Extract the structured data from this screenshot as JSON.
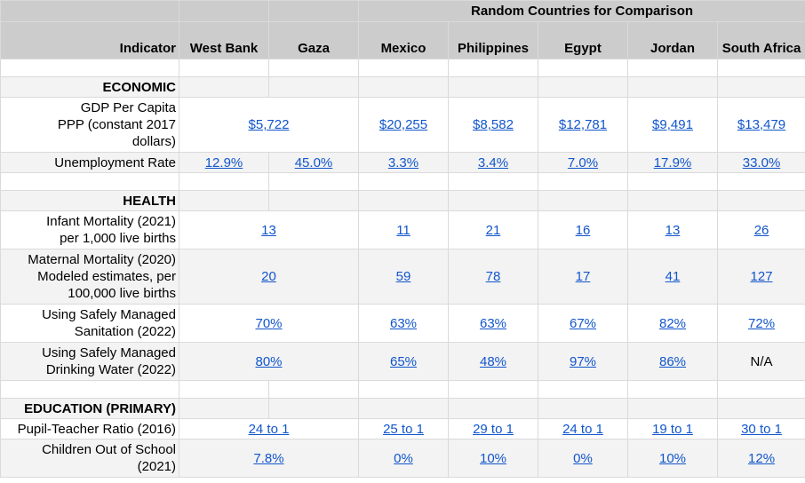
{
  "header": {
    "group_label": "Random Countries for Comparison",
    "indicator": "Indicator",
    "columns": [
      "West Bank",
      "Gaza",
      "Mexico",
      "Philippines",
      "Egypt",
      "Jordan",
      "South Africa"
    ]
  },
  "sections": {
    "economic": "ECONOMIC",
    "health": "HEALTH",
    "education": "EDUCATION (PRIMARY)"
  },
  "rows": {
    "gdp": {
      "label": "GDP Per Capita PPP (constant 2017 dollars)",
      "wb_gaza": "$5,722",
      "mexico": "$20,255",
      "philippines": "$8,582",
      "egypt": "$12,781",
      "jordan": "$9,491",
      "south_africa": "$13,479"
    },
    "unemployment": {
      "label": "Unemployment Rate",
      "west_bank": "12.9%",
      "gaza": "45.0%",
      "mexico": "3.3%",
      "philippines": "3.4%",
      "egypt": "7.0%",
      "jordan": "17.9%",
      "south_africa": "33.0%"
    },
    "infant": {
      "label": "Infant Mortality (2021) per 1,000 live births",
      "wb_gaza": "13",
      "mexico": "11",
      "philippines": "21",
      "egypt": "16",
      "jordan": "13",
      "south_africa": "26"
    },
    "maternal": {
      "label": "Maternal Mortality (2020) Modeled estimates, per 100,000 live births",
      "wb_gaza": "20",
      "mexico": "59",
      "philippines": "78",
      "egypt": "17",
      "jordan": "41",
      "south_africa": "127"
    },
    "sanitation": {
      "label": "Using Safely Managed Sanitation (2022)",
      "wb_gaza": "70%",
      "mexico": "63%",
      "philippines": "63%",
      "egypt": "67%",
      "jordan": "82%",
      "south_africa": "72%"
    },
    "water": {
      "label": "Using Safely Managed Drinking Water (2022)",
      "wb_gaza": "80%",
      "mexico": "65%",
      "philippines": "48%",
      "egypt": "97%",
      "jordan": "86%",
      "south_africa": "N/A"
    },
    "pupil": {
      "label": "Pupil-Teacher Ratio (2016)",
      "wb_gaza": "24 to 1",
      "mexico": "25 to 1",
      "philippines": "29 to 1",
      "egypt": "24 to 1",
      "jordan": "19 to 1",
      "south_africa": "30 to 1"
    },
    "out_of_school": {
      "label": "Children Out of School (2021)",
      "wb_gaza": "7.8%",
      "mexico": "0%",
      "philippines": "10%",
      "egypt": "0%",
      "jordan": "10%",
      "south_africa": "12%"
    }
  }
}
